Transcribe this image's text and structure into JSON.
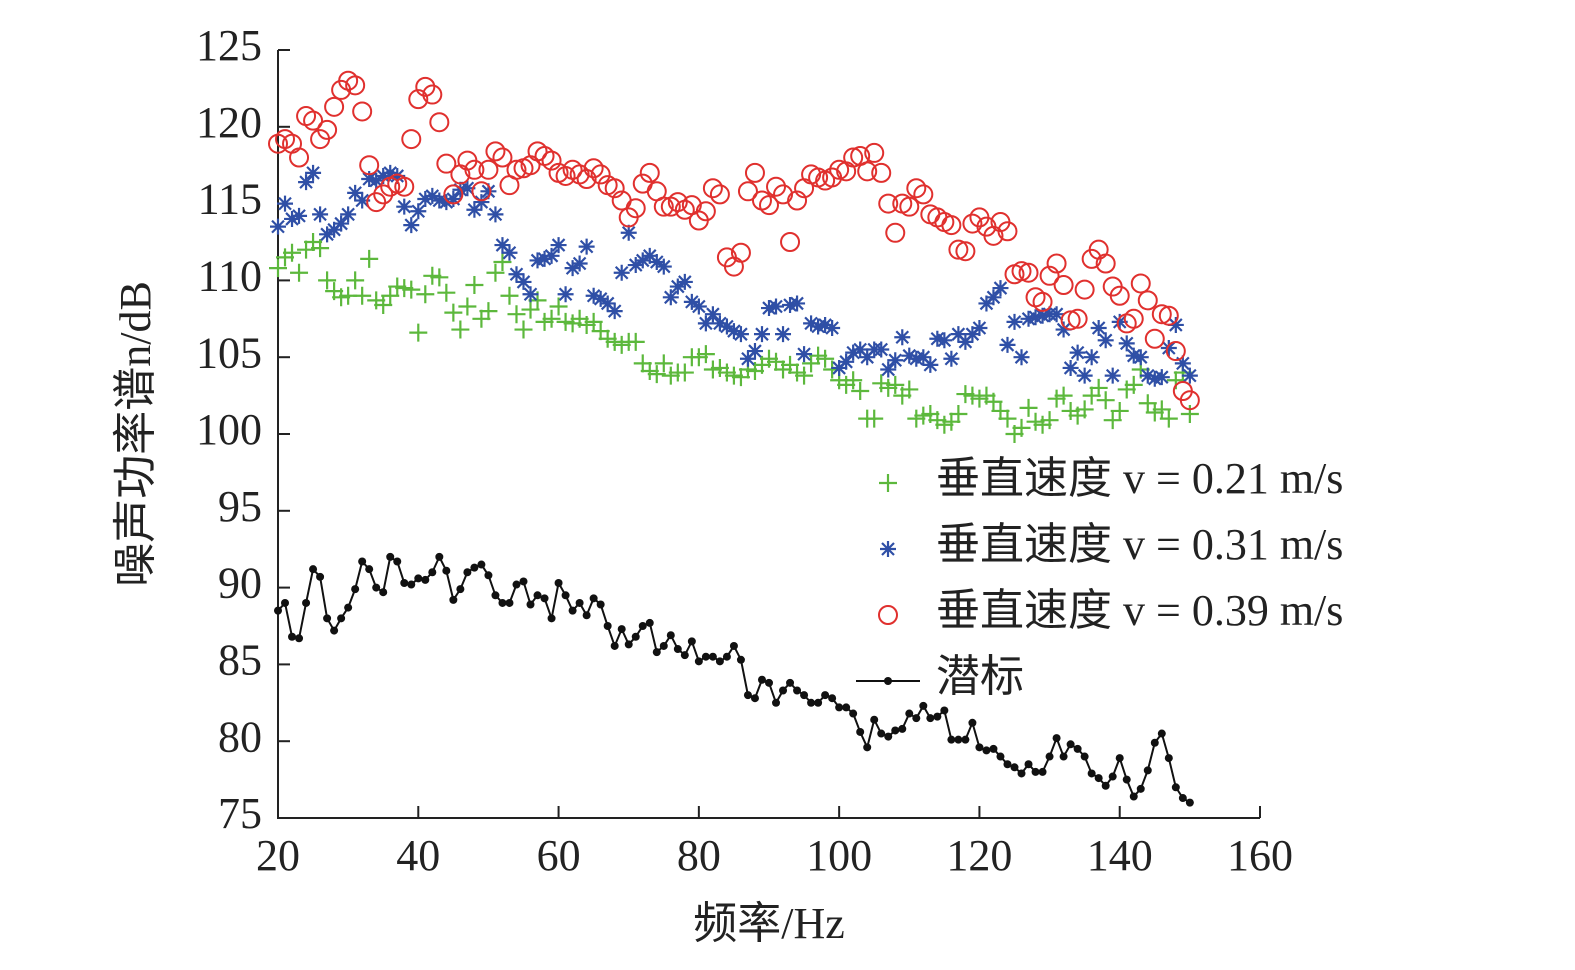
{
  "chart_data": {
    "type": "scatter",
    "x_label": "频率/Hz",
    "y_label": "噪声功率谱n/dB",
    "xlim": [
      20,
      160
    ],
    "xticks": [
      20,
      40,
      60,
      80,
      100,
      120,
      140,
      160
    ],
    "ylim": [
      75,
      125
    ],
    "yticks": [
      75,
      80,
      85,
      90,
      95,
      100,
      105,
      110,
      115,
      120,
      125
    ],
    "legend": "right",
    "x": [
      20,
      21,
      22,
      23,
      24,
      25,
      26,
      27,
      28,
      29,
      30,
      31,
      32,
      33,
      34,
      35,
      36,
      37,
      38,
      39,
      40,
      41,
      42,
      43,
      44,
      45,
      46,
      47,
      48,
      49,
      50,
      51,
      52,
      53,
      54,
      55,
      56,
      57,
      58,
      59,
      60,
      61,
      62,
      63,
      64,
      65,
      66,
      67,
      68,
      69,
      70,
      71,
      72,
      73,
      74,
      75,
      76,
      77,
      78,
      79,
      80,
      81,
      82,
      83,
      84,
      85,
      86,
      87,
      88,
      89,
      90,
      91,
      92,
      93,
      94,
      95,
      96,
      97,
      98,
      99,
      100,
      101,
      102,
      103,
      104,
      105,
      106,
      107,
      108,
      109,
      110,
      111,
      112,
      113,
      114,
      115,
      116,
      117,
      118,
      119,
      120,
      121,
      122,
      123,
      124,
      125,
      126,
      127,
      128,
      129,
      130,
      131,
      132,
      133,
      134,
      135,
      136,
      137,
      138,
      139,
      140,
      141,
      142,
      143,
      144,
      145,
      146,
      147,
      148,
      149,
      150
    ],
    "series": [
      {
        "name": "垂直速度 v = 0.21 m/s",
        "color": "#5cb83c",
        "marker": "plus",
        "values": [
          110.8,
          111.5,
          111.8,
          110.5,
          112,
          112.5,
          112.1,
          110,
          109.3,
          108.9,
          109,
          110,
          109,
          111.4,
          108.7,
          108.4,
          109,
          109.6,
          109.5,
          109.4,
          106.6,
          109.1,
          110.3,
          110.2,
          109.2,
          107.9,
          106.8,
          108.3,
          109.7,
          107.5,
          108,
          110.5,
          111.2,
          109,
          107.8,
          106.8,
          108.1,
          108.7,
          107.3,
          107.5,
          108.3,
          107.3,
          107.2,
          107.5,
          107.1,
          107.3,
          106.7,
          106.2,
          106,
          105.8,
          106,
          106,
          104.6,
          104.1,
          103.9,
          104.6,
          103.8,
          104,
          104,
          105,
          105,
          105.2,
          104.2,
          104.3,
          104,
          103.8,
          103.7,
          104.2,
          104.1,
          104.5,
          104.9,
          104.7,
          104.2,
          104.5,
          104,
          103.8,
          104.6,
          105.1,
          104.9,
          104.2,
          103.5,
          103.2,
          103.5,
          102.8,
          101,
          101,
          103.3,
          103,
          103.2,
          102.5,
          102.9,
          101,
          101.2,
          101.3,
          100.9,
          100.6,
          100.8,
          101.3,
          102.6,
          102.5,
          102.3,
          102.5,
          102.1,
          101.5,
          101,
          100,
          100.4,
          101.7,
          100.8,
          100.6,
          100.9,
          102.3,
          102.5,
          101.5,
          101.2,
          101.6,
          102.5,
          103,
          102.2,
          100.9,
          101.5,
          102.9,
          103.2,
          104.2,
          102,
          101.4,
          101.6,
          101,
          103.5,
          104,
          101.3
        ]
      },
      {
        "name": "垂直速度 v = 0.31 m/s",
        "color": "#2f4fa6",
        "marker": "asterisk",
        "values": [
          113.5,
          115,
          114,
          114.2,
          116.4,
          117,
          114.3,
          113,
          113.3,
          113.7,
          114.3,
          115.7,
          115.2,
          116.6,
          116.5,
          116.8,
          117,
          116.8,
          114.8,
          113.6,
          114.5,
          115.3,
          115.5,
          115.2,
          115.1,
          115.3,
          115.9,
          116,
          114.6,
          115.1,
          115.8,
          114.3,
          112.3,
          111.8,
          110.4,
          109.9,
          109.1,
          111.3,
          111.4,
          111.6,
          112.3,
          109.1,
          110.8,
          111.1,
          112.2,
          109,
          108.8,
          108.5,
          108,
          110.5,
          113.1,
          111,
          111.3,
          111.6,
          111.2,
          110.9,
          108.9,
          109.6,
          109.9,
          108.6,
          108.3,
          107.2,
          107.8,
          107.2,
          107,
          106.7,
          106.5,
          104.9,
          105.4,
          106.5,
          108.2,
          108.3,
          106.5,
          108.4,
          108.5,
          105.2,
          107.2,
          107,
          107.1,
          106.9,
          104.3,
          104.7,
          105.3,
          105.5,
          105,
          105.5,
          105.5,
          104.2,
          104.8,
          106.3,
          105.1,
          104.9,
          105,
          104.5,
          106.2,
          106.1,
          104.9,
          106.5,
          106,
          106.5,
          106.9,
          108.5,
          108.9,
          109.5,
          105.8,
          107.3,
          105,
          107.5,
          107.6,
          107.7,
          107.8,
          107.8,
          106.8,
          104.3,
          105.3,
          103.8,
          105,
          106.9,
          106.1,
          103.8,
          107.3,
          105.9,
          105.1,
          105,
          103.8,
          103.6,
          103.7,
          105.6,
          107.1,
          104.6,
          103.8
        ]
      },
      {
        "name": "垂直速度 v = 0.39 m/s",
        "color": "#e0302e",
        "marker": "circle",
        "values": [
          118.9,
          119.2,
          118.9,
          118,
          120.7,
          120.4,
          119.2,
          119.8,
          121.3,
          122.4,
          123,
          122.7,
          121,
          117.5,
          115.1,
          115.6,
          116.1,
          116.3,
          116.1,
          119.2,
          121.8,
          122.6,
          122.1,
          120.3,
          117.6,
          115.6,
          116.9,
          117.8,
          117.2,
          115.8,
          117.2,
          118.4,
          118,
          116.2,
          117.2,
          117.3,
          117.5,
          118.4,
          118.1,
          117.8,
          117,
          116.8,
          117.2,
          116.9,
          116.6,
          117.3,
          116.9,
          116.2,
          116,
          115.2,
          114.1,
          114.7,
          116.3,
          117,
          115.8,
          114.8,
          114.8,
          115.1,
          114.6,
          114.9,
          113.9,
          114.5,
          116,
          115.6,
          111.5,
          110.9,
          111.8,
          115.8,
          117,
          115.2,
          114.9,
          116.1,
          115.6,
          112.5,
          115.2,
          116,
          116.9,
          116.7,
          116.5,
          116.7,
          117.2,
          117.1,
          118,
          118.1,
          117.1,
          118.3,
          117,
          115,
          113.1,
          115,
          114.8,
          116,
          115.6,
          114.3,
          114.1,
          113.8,
          113.6,
          112,
          111.9,
          113.7,
          114.1,
          113.5,
          112.9,
          113.8,
          113.2,
          110.4,
          110.6,
          110.5,
          108.9,
          108.6,
          110.3,
          111.1,
          109.7,
          107.4,
          107.5,
          109.4,
          111.4,
          112,
          111.1,
          109.6,
          109,
          107.2,
          107.5,
          109.8,
          108.7,
          106.2,
          107.8,
          107.7,
          105.4,
          102.8,
          102.2
        ]
      },
      {
        "name": "潜标",
        "color": "#111111",
        "marker": "line-dot",
        "values": [
          88.5,
          89,
          86.8,
          86.7,
          89,
          91.2,
          90.7,
          88,
          87.2,
          88,
          88.7,
          89.9,
          91.7,
          91.2,
          90,
          89.7,
          92,
          91.7,
          90.3,
          90.2,
          90.6,
          90.5,
          91,
          92,
          91.1,
          89.2,
          89.9,
          91,
          91.3,
          91.5,
          90.8,
          89.5,
          89,
          89,
          90.2,
          90.4,
          88.9,
          89.5,
          89.3,
          88,
          90.3,
          89.5,
          88.5,
          89,
          88.2,
          89.3,
          88.9,
          87.5,
          86.2,
          87.3,
          86.3,
          86.8,
          87.5,
          87.7,
          85.8,
          86.2,
          86.9,
          86,
          85.6,
          86.5,
          85.2,
          85.5,
          85.5,
          85.2,
          85.5,
          86.2,
          85.3,
          83,
          82.8,
          84,
          83.8,
          82.5,
          83.3,
          83.8,
          83.3,
          83,
          82.5,
          82.5,
          83,
          82.8,
          82.2,
          82.2,
          81.8,
          80.6,
          79.6,
          81.4,
          80.5,
          80.3,
          80.7,
          80.8,
          81.8,
          81.5,
          82.3,
          81.5,
          81.6,
          82,
          80.1,
          80.1,
          80.1,
          81.2,
          79.6,
          79.4,
          79.5,
          79,
          78.5,
          78.3,
          77.9,
          78.5,
          78,
          78,
          79,
          80.2,
          79,
          79.8,
          79.5,
          79,
          77.9,
          77.6,
          77.1,
          77.7,
          78.9,
          77.5,
          76.4,
          76.9,
          78.1,
          79.9,
          80.5,
          78.9,
          77,
          76.3,
          76
        ]
      }
    ]
  }
}
